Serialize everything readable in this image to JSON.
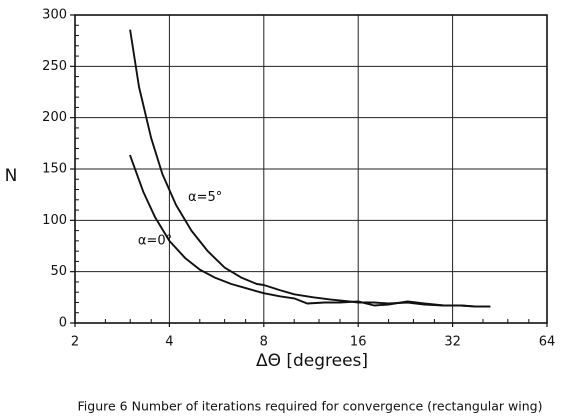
{
  "chart_data": {
    "type": "line",
    "xscale": "log2",
    "xlabel": "ΔΘ [degrees]",
    "ylabel": "N",
    "xlim": [
      2,
      64
    ],
    "ylim": [
      0,
      300
    ],
    "xticks": [
      2,
      4,
      8,
      16,
      32,
      64
    ],
    "xtick_labels": [
      "2",
      "4",
      "8",
      "16",
      "32",
      "64"
    ],
    "yticks": [
      0,
      50,
      100,
      150,
      200,
      250,
      300
    ],
    "ytick_labels": [
      "0",
      "50",
      "100",
      "150",
      "200",
      "250",
      "300"
    ],
    "grid": true,
    "series": [
      {
        "name": "α=5°",
        "x": [
          3.0,
          3.2,
          3.5,
          3.8,
          4.2,
          4.7,
          5.3,
          6.0,
          6.8,
          7.6,
          8.0,
          9.0,
          10.0,
          11.5,
          13.0,
          15.0,
          16.0,
          18.0,
          20.0,
          23.0,
          26.0,
          30.0,
          34.0,
          38.0,
          42.0
        ],
        "y": [
          285,
          230,
          180,
          145,
          115,
          90,
          70,
          54,
          44,
          38,
          37,
          32,
          28,
          25,
          23,
          21,
          20,
          20,
          19,
          20,
          18,
          17,
          17,
          16,
          16
        ]
      },
      {
        "name": "α=0°",
        "x": [
          3.0,
          3.3,
          3.6,
          4.0,
          4.5,
          5.0,
          5.6,
          6.3,
          7.0,
          8.0,
          9.0,
          10.0,
          11.0,
          12.5,
          14.0,
          16.0,
          18.0,
          20.0,
          23.0,
          26.0,
          30.0,
          34.0,
          38.0,
          42.0
        ],
        "y": [
          163,
          128,
          103,
          80,
          63,
          52,
          44,
          38,
          34,
          29,
          26,
          24,
          19,
          20,
          20,
          21,
          17,
          18,
          21,
          19,
          17,
          17,
          16,
          16
        ]
      }
    ],
    "annotations": [
      {
        "text": "α=5°",
        "x": 5.2,
        "y": 122
      },
      {
        "text": "α=0°",
        "x": 3.6,
        "y": 80
      }
    ]
  },
  "caption": "Figure 6 Number of iterations required for convergence (rectangular wing)"
}
